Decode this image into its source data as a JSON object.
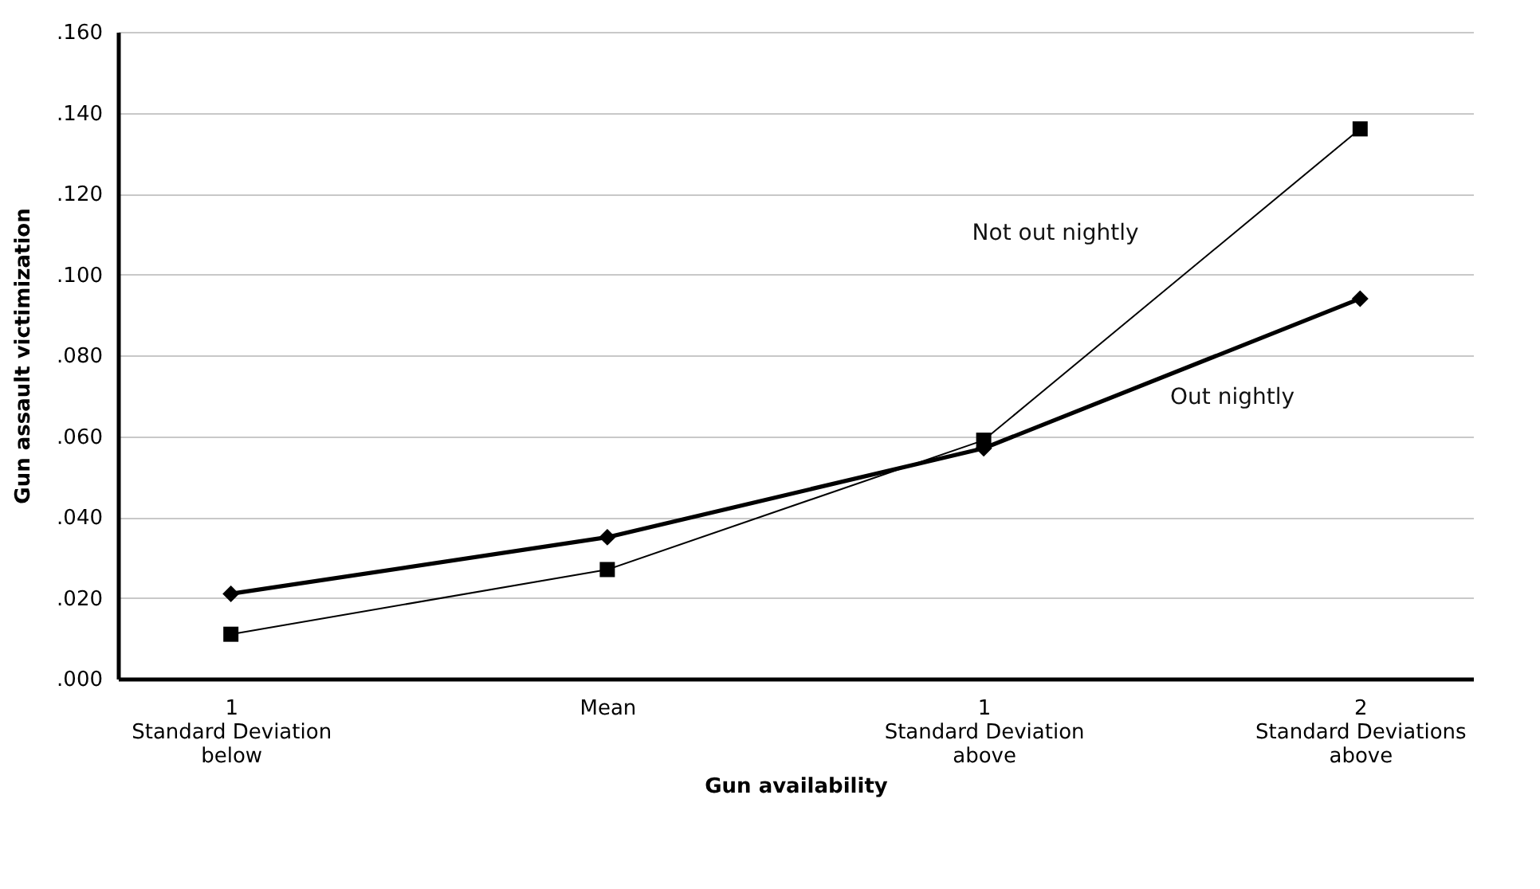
{
  "chart_data": {
    "type": "line",
    "xlabel": "Gun availability",
    "ylabel": "Gun assault victimization",
    "categories": [
      "1\nStandard Deviation\nbelow",
      "Mean",
      "1\nStandard Deviation\nabove",
      "2\nStandard Deviations\nabove"
    ],
    "series": [
      {
        "name": "Out nightly",
        "color": "#000000",
        "marker": "diamond",
        "values": [
          0.021,
          0.035,
          0.057,
          0.094
        ]
      },
      {
        "name": "Not out nightly",
        "color": "#000000",
        "marker": "square",
        "values": [
          0.011,
          0.027,
          0.059,
          0.136
        ]
      }
    ],
    "ylim": [
      0,
      0.16
    ],
    "yticks": [
      {
        "value": 0,
        "label": ".000"
      },
      {
        "value": 0.02,
        "label": ".020"
      },
      {
        "value": 0.04,
        "label": ".040"
      },
      {
        "value": 0.06,
        "label": ".060"
      },
      {
        "value": 0.08,
        "label": ".080"
      },
      {
        "value": 0.1,
        "label": ".100"
      },
      {
        "value": 0.12,
        "label": ".120"
      },
      {
        "value": 0.14,
        "label": ".140"
      },
      {
        "value": 0.16,
        "label": ".160"
      }
    ],
    "grid": "y",
    "line_style": "solid"
  }
}
